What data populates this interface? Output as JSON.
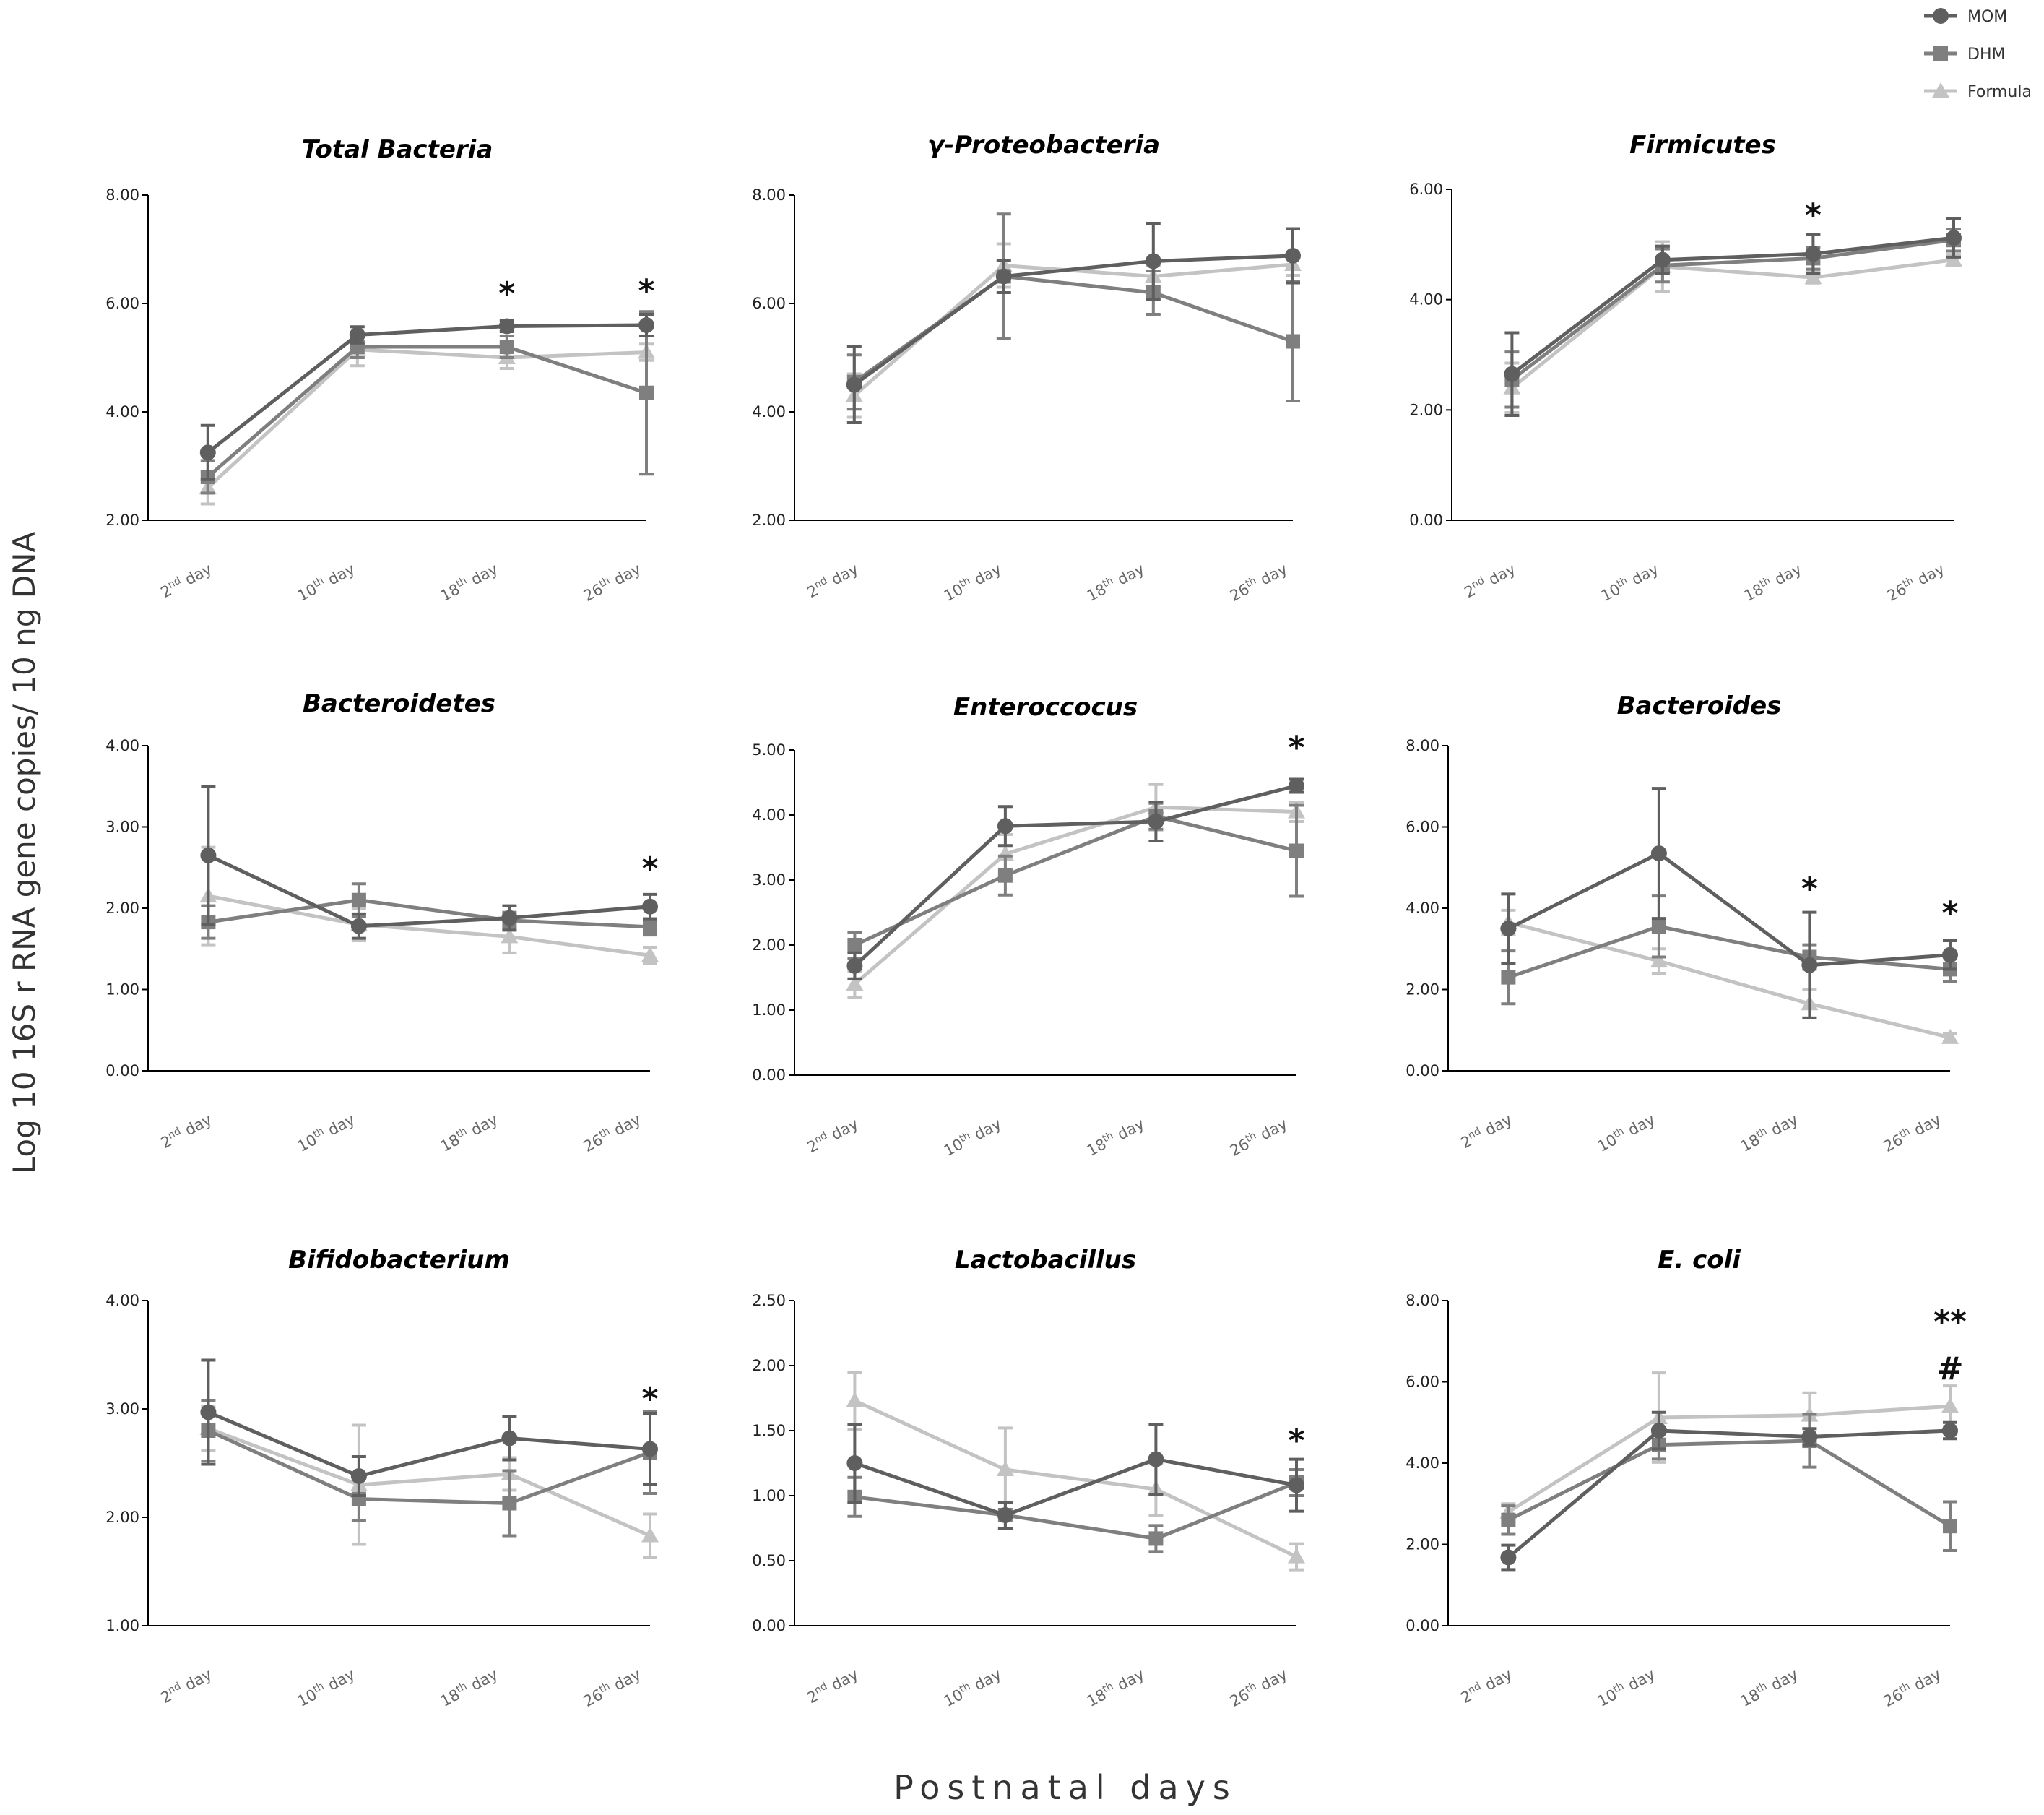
{
  "legend": [
    {
      "name": "MOM",
      "color": "#5f5f5f",
      "marker": "circle"
    },
    {
      "name": "DHM",
      "color": "#7f7f7f",
      "marker": "square"
    },
    {
      "name": "Formula",
      "color": "#c3c3c3",
      "marker": "triangle"
    }
  ],
  "ylabel": "Log 10 16S r RNA gene copies/ 10 ng DNA",
  "xlabel": "Postnatal  days",
  "chart_data": [
    {
      "type": "line",
      "title": "Total Bacteria",
      "categories": [
        "2nd day",
        "10th day",
        "18th day",
        "26th day"
      ],
      "ylim": [
        2,
        8
      ],
      "yticks": [
        "2.00",
        "4.00",
        "6.00",
        "8.00"
      ],
      "series": [
        {
          "name": "MOM",
          "values": [
            3.25,
            5.42,
            5.58,
            5.6
          ],
          "errors": [
            0.5,
            0.15,
            0.1,
            0.2
          ]
        },
        {
          "name": "DHM",
          "values": [
            2.8,
            5.2,
            5.2,
            4.35
          ],
          "errors": [
            0.3,
            0.2,
            0.2,
            1.5
          ]
        },
        {
          "name": "Formula",
          "values": [
            2.6,
            5.15,
            5.0,
            5.1
          ],
          "errors": [
            0.3,
            0.3,
            0.2,
            0.15
          ]
        }
      ],
      "annotations": [
        {
          "category": 2,
          "text": "*",
          "y": 6.2
        },
        {
          "category": 3,
          "text": "*",
          "y": 6.25
        }
      ]
    },
    {
      "type": "line",
      "title": "γ-Proteobacteria",
      "categories": [
        "2nd day",
        "10th day",
        "18th day",
        "26th day"
      ],
      "ylim": [
        2,
        8
      ],
      "yticks": [
        "2.00",
        "4.00",
        "6.00",
        "8.00"
      ],
      "series": [
        {
          "name": "MOM",
          "values": [
            4.5,
            6.5,
            6.78,
            6.88
          ],
          "errors": [
            0.7,
            0.3,
            0.7,
            0.5
          ]
        },
        {
          "name": "DHM",
          "values": [
            4.55,
            6.5,
            6.2,
            5.3
          ],
          "errors": [
            0.5,
            1.15,
            0.4,
            1.1
          ]
        },
        {
          "name": "Formula",
          "values": [
            4.3,
            6.7,
            6.5,
            6.72
          ],
          "errors": [
            0.4,
            0.4,
            0.2,
            0.2
          ]
        }
      ],
      "annotations": []
    },
    {
      "type": "line",
      "title": "Firmicutes",
      "categories": [
        "2nd day",
        "10th day",
        "18th day",
        "26th day"
      ],
      "ylim": [
        0,
        6
      ],
      "yticks": [
        "0.00",
        "2.00",
        "4.00",
        "6.00"
      ],
      "series": [
        {
          "name": "MOM",
          "values": [
            2.65,
            4.72,
            4.83,
            5.12
          ],
          "errors": [
            0.75,
            0.25,
            0.35,
            0.35
          ]
        },
        {
          "name": "DHM",
          "values": [
            2.55,
            4.62,
            4.75,
            5.08
          ],
          "errors": [
            0.5,
            0.3,
            0.2,
            0.2
          ]
        },
        {
          "name": "Formula",
          "values": [
            2.4,
            4.6,
            4.4,
            4.72
          ],
          "errors": [
            0.45,
            0.45,
            0.1,
            0.1
          ]
        }
      ],
      "annotations": [
        {
          "category": 2,
          "text": "*",
          "y": 5.55
        }
      ]
    },
    {
      "type": "line",
      "title": "Bacteroidetes",
      "categories": [
        "2nd day",
        "10th day",
        "18th day",
        "26th day"
      ],
      "ylim": [
        0,
        4
      ],
      "yticks": [
        "0.00",
        "1.00",
        "2.00",
        "3.00",
        "4.00"
      ],
      "series": [
        {
          "name": "MOM",
          "values": [
            2.65,
            1.78,
            1.88,
            2.02
          ],
          "errors": [
            0.85,
            0.15,
            0.15,
            0.15
          ]
        },
        {
          "name": "DHM",
          "values": [
            1.83,
            2.1,
            1.85,
            1.77
          ],
          "errors": [
            0.2,
            0.2,
            0.1,
            0.1
          ]
        },
        {
          "name": "Formula",
          "values": [
            2.15,
            1.8,
            1.65,
            1.42
          ],
          "errors": [
            0.6,
            0.2,
            0.2,
            0.1
          ]
        }
      ],
      "annotations": [
        {
          "category": 3,
          "text": "*",
          "y": 2.5
        }
      ]
    },
    {
      "type": "line",
      "title": "Enteroccocus",
      "categories": [
        "2nd day",
        "10th day",
        "18th day",
        "26th day"
      ],
      "ylim": [
        0,
        5
      ],
      "yticks": [
        "0.00",
        "1.00",
        "2.00",
        "3.00",
        "4.00",
        "5.00"
      ],
      "series": [
        {
          "name": "MOM",
          "values": [
            1.68,
            3.83,
            3.9,
            4.45
          ],
          "errors": [
            0.2,
            0.3,
            0.3,
            0.1
          ]
        },
        {
          "name": "DHM",
          "values": [
            2.0,
            3.07,
            3.98,
            3.45
          ],
          "errors": [
            0.2,
            0.3,
            0.2,
            0.7
          ]
        },
        {
          "name": "Formula",
          "values": [
            1.4,
            3.4,
            4.12,
            4.05
          ],
          "errors": [
            0.2,
            0.3,
            0.35,
            0.15
          ]
        }
      ],
      "annotations": [
        {
          "category": 3,
          "text": "*",
          "y": 5.05
        }
      ]
    },
    {
      "type": "line",
      "title": "Bacteroides",
      "categories": [
        "2nd day",
        "10th day",
        "18th day",
        "26th day"
      ],
      "ylim": [
        0,
        8
      ],
      "yticks": [
        "0.00",
        "2.00",
        "4.00",
        "6.00",
        "8.00"
      ],
      "series": [
        {
          "name": "MOM",
          "values": [
            3.5,
            5.35,
            2.6,
            2.85
          ],
          "errors": [
            0.85,
            1.6,
            1.3,
            0.35
          ]
        },
        {
          "name": "DHM",
          "values": [
            2.3,
            3.55,
            2.8,
            2.5
          ],
          "errors": [
            0.65,
            0.75,
            0.3,
            0.3
          ]
        },
        {
          "name": "Formula",
          "values": [
            3.65,
            2.7,
            1.65,
            0.82
          ],
          "errors": [
            0.3,
            0.3,
            0.35,
            0.1
          ]
        }
      ],
      "annotations": [
        {
          "category": 2,
          "text": "*",
          "y": 4.5
        },
        {
          "category": 3,
          "text": "*",
          "y": 3.9
        }
      ]
    },
    {
      "type": "line",
      "title": "Bifidobacterium",
      "categories": [
        "2nd day",
        "10th day",
        "18th day",
        "26th day"
      ],
      "ylim": [
        1,
        4
      ],
      "yticks": [
        "1.00",
        "2.00",
        "3.00",
        "4.00"
      ],
      "series": [
        {
          "name": "MOM",
          "values": [
            2.97,
            2.38,
            2.73,
            2.63
          ],
          "errors": [
            0.48,
            0.18,
            0.2,
            0.33
          ]
        },
        {
          "name": "DHM",
          "values": [
            2.8,
            2.17,
            2.13,
            2.6
          ],
          "errors": [
            0.28,
            0.2,
            0.3,
            0.38
          ]
        },
        {
          "name": "Formula",
          "values": [
            2.82,
            2.3,
            2.4,
            1.83
          ],
          "errors": [
            0.2,
            0.55,
            0.15,
            0.2
          ]
        }
      ],
      "annotations": [
        {
          "category": 3,
          "text": "*",
          "y": 3.1
        }
      ]
    },
    {
      "type": "line",
      "title": "Lactobacillus",
      "categories": [
        "2nd day",
        "10th day",
        "18th day",
        "26th day"
      ],
      "ylim": [
        0,
        2.5
      ],
      "yticks": [
        "0.00",
        "0.50",
        "1.00",
        "1.50",
        "2.00",
        "2.50"
      ],
      "series": [
        {
          "name": "MOM",
          "values": [
            1.25,
            0.85,
            1.28,
            1.08
          ],
          "errors": [
            0.3,
            0.1,
            0.27,
            0.2
          ]
        },
        {
          "name": "DHM",
          "values": [
            0.99,
            0.85,
            0.67,
            1.1
          ],
          "errors": [
            0.15,
            0.1,
            0.1,
            0.1
          ]
        },
        {
          "name": "Formula",
          "values": [
            1.73,
            1.2,
            1.05,
            0.53
          ],
          "errors": [
            0.22,
            0.32,
            0.2,
            0.1
          ]
        }
      ],
      "annotations": [
        {
          "category": 3,
          "text": "*",
          "y": 1.43
        }
      ]
    },
    {
      "type": "line",
      "title": "E. coli",
      "categories": [
        "2nd day",
        "10th day",
        "18th day",
        "26th day"
      ],
      "ylim": [
        0,
        8
      ],
      "yticks": [
        "0.00",
        "2.00",
        "4.00",
        "6.00",
        "8.00"
      ],
      "series": [
        {
          "name": "MOM",
          "values": [
            1.68,
            4.8,
            4.65,
            4.8
          ],
          "errors": [
            0.3,
            0.45,
            0.2,
            0.2
          ]
        },
        {
          "name": "DHM",
          "values": [
            2.6,
            4.45,
            4.55,
            2.45
          ],
          "errors": [
            0.35,
            0.35,
            0.65,
            0.6
          ]
        },
        {
          "name": "Formula",
          "values": [
            2.8,
            5.12,
            5.18,
            5.4
          ],
          "errors": [
            0.2,
            1.1,
            0.55,
            0.5
          ]
        }
      ],
      "annotations": [
        {
          "category": 3,
          "text": "**",
          "y": 7.5
        },
        {
          "category": 3,
          "text": "#",
          "y": 6.35
        }
      ]
    }
  ]
}
